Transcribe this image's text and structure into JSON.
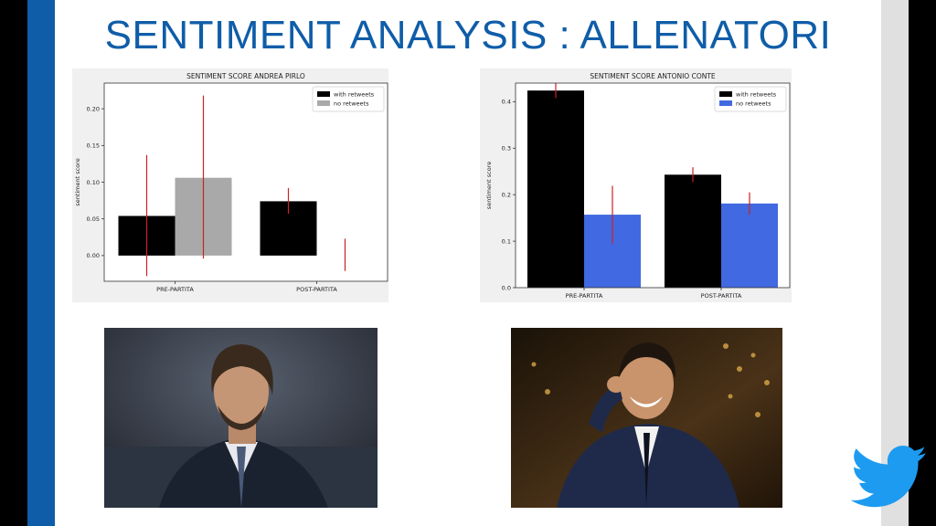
{
  "slide": {
    "title": "SENTIMENT ANALYSIS : ALLENATORI"
  },
  "colors": {
    "accent": "#0f5da8",
    "with_retweets": "#000000",
    "no_retweets_pirlo": "#a9a9a9",
    "no_retweets_conte": "#4169e1",
    "error_bar": "#cc2222",
    "twitter_blue": "#1d9bf0"
  },
  "photos": [
    {
      "subject": "Andrea Pirlo portrait"
    },
    {
      "subject": "Antonio Conte portrait"
    }
  ],
  "chart_data": [
    {
      "type": "bar",
      "title": "SENTIMENT SCORE ANDREA PIRLO",
      "xlabel": "",
      "ylabel": "sentiment score",
      "categories": [
        "PRE-PARTITA",
        "POST-PARTITA"
      ],
      "ylim": [
        -0.035,
        0.235
      ],
      "yticks": [
        0.0,
        0.05,
        0.1,
        0.15,
        0.2
      ],
      "ytick_labels": [
        "0.00",
        "0.05",
        "0.10",
        "0.15",
        "0.20"
      ],
      "legend_position": "top-right",
      "grid": false,
      "series": [
        {
          "name": "with retweets",
          "color": "#000000",
          "values": [
            0.054,
            0.074
          ],
          "err_low": [
            -0.028,
            0.057
          ],
          "err_high": [
            0.137,
            0.092
          ]
        },
        {
          "name": "no retweets",
          "color": "#a9a9a9",
          "values": [
            0.106,
            0.0
          ],
          "err_low": [
            -0.004,
            -0.021
          ],
          "err_high": [
            0.218,
            0.023
          ]
        }
      ]
    },
    {
      "type": "bar",
      "title": "SENTIMENT SCORE ANTONIO CONTE",
      "xlabel": "",
      "ylabel": "sentiment score",
      "categories": [
        "PRE-PARTITA",
        "POST-PARTITA"
      ],
      "ylim": [
        0.0,
        0.44
      ],
      "yticks": [
        0.0,
        0.1,
        0.2,
        0.3,
        0.4
      ],
      "ytick_labels": [
        "0.0",
        "0.1",
        "0.2",
        "0.3",
        "0.4"
      ],
      "legend_position": "top-right",
      "grid": false,
      "series": [
        {
          "name": "with retweets",
          "color": "#000000",
          "values": [
            0.424,
            0.243
          ],
          "err_low": [
            0.408,
            0.227
          ],
          "err_high": [
            0.44,
            0.259
          ]
        },
        {
          "name": "no retweets",
          "color": "#4169e1",
          "values": [
            0.157,
            0.181
          ],
          "err_low": [
            0.095,
            0.157
          ],
          "err_high": [
            0.219,
            0.205
          ]
        }
      ]
    }
  ]
}
